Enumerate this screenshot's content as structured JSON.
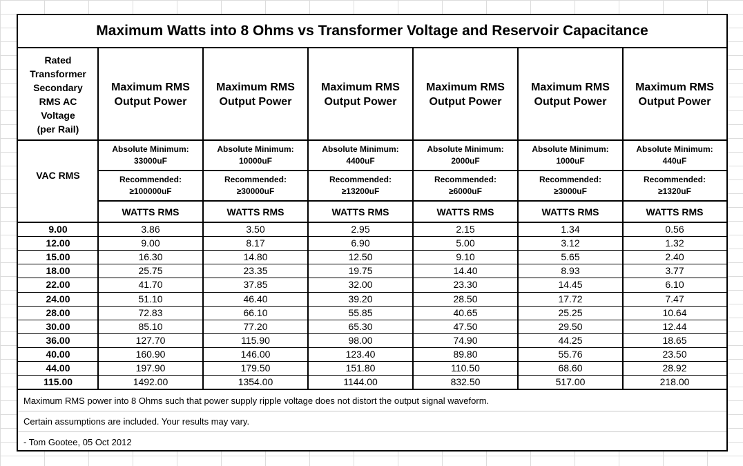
{
  "title": "Maximum Watts into 8 Ohms vs Transformer Voltage and Reservoir Capacitance",
  "header": {
    "rated_label_lines": [
      "Rated",
      "Transformer",
      "Secondary",
      "RMS AC",
      "Voltage",
      "(per Rail)"
    ],
    "vac_label": "VAC RMS",
    "columns": [
      {
        "power_lines": [
          "Maximum RMS",
          "Output Power"
        ],
        "abs_min_label": "Absolute Minimum:",
        "abs_min_value": "33000uF",
        "rec_label": "Recommended:",
        "rec_value": "≥100000uF",
        "unit": "WATTS RMS"
      },
      {
        "power_lines": [
          "Maximum RMS",
          "Output Power"
        ],
        "abs_min_label": "Absolute Minimum:",
        "abs_min_value": "10000uF",
        "rec_label": "Recommended:",
        "rec_value": "≥30000uF",
        "unit": "WATTS RMS"
      },
      {
        "power_lines": [
          "Maximum RMS",
          "Output Power"
        ],
        "abs_min_label": "Absolute Minimum:",
        "abs_min_value": "4400uF",
        "rec_label": "Recommended:",
        "rec_value": "≥13200uF",
        "unit": "WATTS RMS"
      },
      {
        "power_lines": [
          "Maximum RMS",
          "Output Power"
        ],
        "abs_min_label": "Absolute Minimum:",
        "abs_min_value": "2000uF",
        "rec_label": "Recommended:",
        "rec_value": "≥6000uF",
        "unit": "WATTS RMS"
      },
      {
        "power_lines": [
          "Maximum RMS",
          "Output Power"
        ],
        "abs_min_label": "Absolute Minimum:",
        "abs_min_value": "1000uF",
        "rec_label": "Recommended:",
        "rec_value": "≥3000uF",
        "unit": "WATTS RMS"
      },
      {
        "power_lines": [
          "Maximum RMS",
          "Output Power"
        ],
        "abs_min_label": "Absolute Minimum:",
        "abs_min_value": "440uF",
        "rec_label": "Recommended:",
        "rec_value": "≥1320uF",
        "unit": "WATTS RMS"
      }
    ]
  },
  "rows": [
    {
      "voltage": "9.00",
      "values": [
        "3.86",
        "3.50",
        "2.95",
        "2.15",
        "1.34",
        "0.56"
      ]
    },
    {
      "voltage": "12.00",
      "values": [
        "9.00",
        "8.17",
        "6.90",
        "5.00",
        "3.12",
        "1.32"
      ]
    },
    {
      "voltage": "15.00",
      "values": [
        "16.30",
        "14.80",
        "12.50",
        "9.10",
        "5.65",
        "2.40"
      ]
    },
    {
      "voltage": "18.00",
      "values": [
        "25.75",
        "23.35",
        "19.75",
        "14.40",
        "8.93",
        "3.77"
      ]
    },
    {
      "voltage": "22.00",
      "values": [
        "41.70",
        "37.85",
        "32.00",
        "23.30",
        "14.45",
        "6.10"
      ]
    },
    {
      "voltage": "24.00",
      "values": [
        "51.10",
        "46.40",
        "39.20",
        "28.50",
        "17.72",
        "7.47"
      ]
    },
    {
      "voltage": "28.00",
      "values": [
        "72.83",
        "66.10",
        "55.85",
        "40.65",
        "25.25",
        "10.64"
      ]
    },
    {
      "voltage": "30.00",
      "values": [
        "85.10",
        "77.20",
        "65.30",
        "47.50",
        "29.50",
        "12.44"
      ]
    },
    {
      "voltage": "36.00",
      "values": [
        "127.70",
        "115.90",
        "98.00",
        "74.90",
        "44.25",
        "18.65"
      ]
    },
    {
      "voltage": "40.00",
      "values": [
        "160.90",
        "146.00",
        "123.40",
        "89.80",
        "55.76",
        "23.50"
      ]
    },
    {
      "voltage": "44.00",
      "values": [
        "197.90",
        "179.50",
        "151.80",
        "110.50",
        "68.60",
        "28.92"
      ]
    },
    {
      "voltage": "115.00",
      "values": [
        "1492.00",
        "1354.00",
        "1144.00",
        "832.50",
        "517.00",
        "218.00"
      ]
    }
  ],
  "notes": [
    "Maximum RMS power into 8 Ohms such that power supply ripple voltage does not distort the output signal waveform.",
    "Certain assumptions are included.  Your results may vary.",
    "- Tom Gootee, 05 Oct 2012"
  ]
}
